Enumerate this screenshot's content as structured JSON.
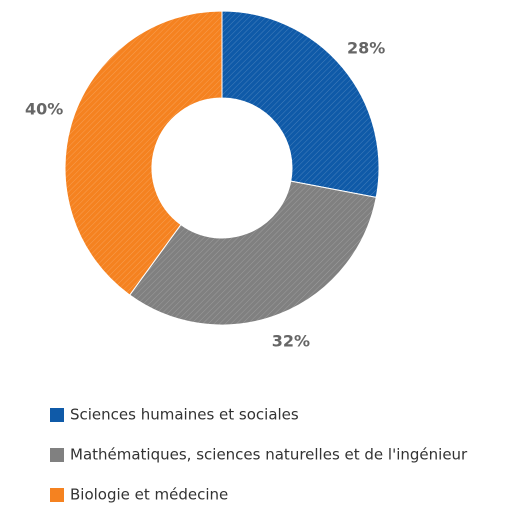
{
  "chart_data": {
    "type": "pie",
    "categories": [
      "Sciences humaines et sociales",
      "Mathématiques, sciences naturelles et de l'ingénieur",
      "Biologie et médecine"
    ],
    "values": [
      28,
      32,
      40
    ],
    "value_labels": [
      "28%",
      "32%",
      "40%"
    ],
    "colors": [
      "#0f5aa8",
      "#808080",
      "#f58220"
    ],
    "donut": true
  }
}
